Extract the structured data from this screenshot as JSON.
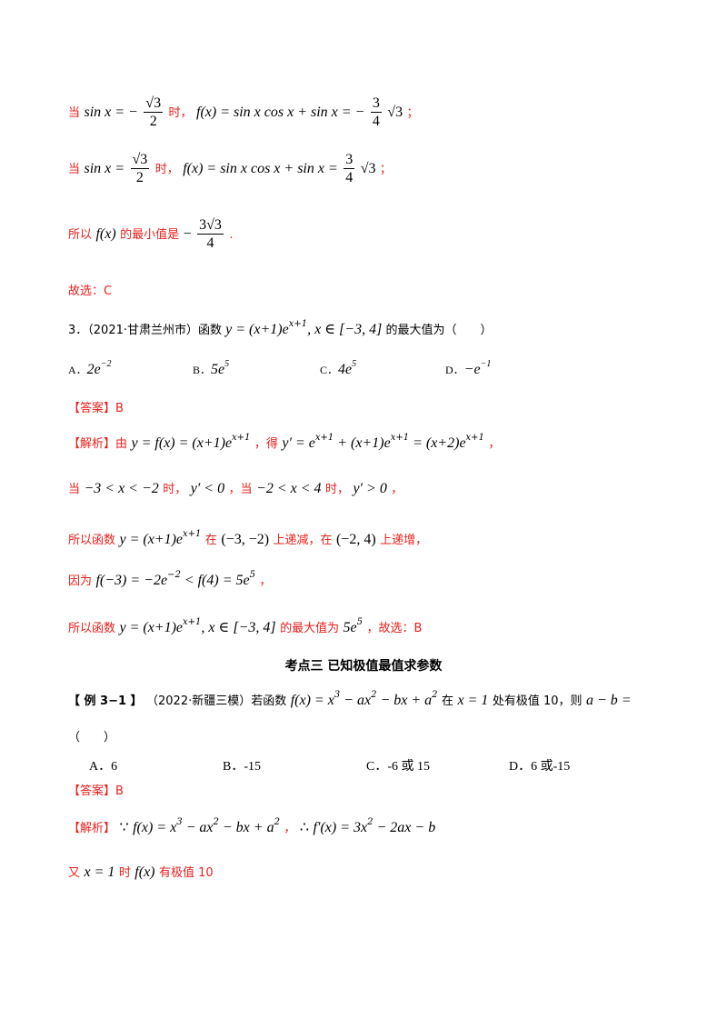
{
  "lines": {
    "l1_prefix": "当",
    "l1_cond_lhs": "sin x = −",
    "l1_cond_num": "√3",
    "l1_cond_den": "2",
    "l1_shi": "时，",
    "l1_expr": "f(x) = sin x cos x + sin x = −",
    "l1_val_num": "3",
    "l1_val_den": "4",
    "l1_val_tail": "√3",
    "l1_end": "；",
    "l2_prefix": "当",
    "l2_cond_lhs": "sin x =",
    "l2_cond_num": "√3",
    "l2_cond_den": "2",
    "l2_shi": "时，",
    "l2_expr": "f(x) = sin x cos x + sin x =",
    "l2_val_num": "3",
    "l2_val_den": "4",
    "l2_val_tail": "√3",
    "l2_end": "；",
    "l3_prefix": "所以",
    "l3_fx": "f(x)",
    "l3_mid": "的最小值是",
    "l3_neg": "−",
    "l3_num": "3√3",
    "l3_den": "4",
    "l3_end": ".",
    "l4_text": "故选：C"
  },
  "q3": {
    "label": "3．（2021·甘肃兰州市）函数",
    "func": "y = (x+1)e",
    "func_sup": "x+1",
    "domain": ", x ∈ [−3, 4]",
    "tail": "的最大值为（　　）",
    "options": [
      {
        "label": "A．",
        "base": "2e",
        "exp": "−2"
      },
      {
        "label": "B．",
        "base": "5e",
        "exp": "5"
      },
      {
        "label": "C．",
        "base": "4e",
        "exp": "5"
      },
      {
        "label": "D．",
        "base": "−e",
        "exp": "−1"
      }
    ]
  },
  "ans3": {
    "label": "【答案】B",
    "jiexi": "【解析】",
    "you": "由",
    "eq1": "y = f(x) = (x+1)e",
    "eq1_sup": "x+1",
    "de": "，得",
    "eq2a": "y′ = e",
    "eq2a_sup": "x+1",
    "eq2b": " + (x+1)e",
    "eq2b_sup": "x+1",
    "eq2c": " = (x+2)e",
    "eq2c_sup": "x+1",
    "comma": "，",
    "l_dang1": "当",
    "range1": "−3 < x < −2",
    "shi1": "时，",
    "yp1": "y′ < 0",
    "dang2": "，当",
    "range2": "−2 < x < 4",
    "shi2": "时，",
    "yp2": "y′ > 0",
    "c2": "，",
    "suoyi": "所以函数",
    "func": "y = (x+1)e",
    "func_sup": "x+1",
    "zai": "在",
    "int1": "(−3, −2)",
    "dec": "上递减，在",
    "int2": "(−2, 4)",
    "inc": "上递增，",
    "yinwei": "因为",
    "cmp": "f(−3) = −2e",
    "cmp_sup": "−2",
    "cmp2": " < f(4) = 5e",
    "cmp2_sup": "5",
    "c3": "，",
    "suoyi2": "所以函数",
    "func2": "y = (x+1)e",
    "func2_sup": "x+1",
    "domain2": ", x ∈ [−3, 4]",
    "maxis": "的最大值为",
    "maxval": "5e",
    "maxval_sup": "5",
    "final": "，故选：B"
  },
  "section": {
    "title": "考点三  已知极值最值求参数"
  },
  "ex31": {
    "label": "【 例 3−1 】",
    "source": "（2022·新疆三模）若函数",
    "func": "f(x) = x",
    "f_s1": "3",
    "f_p2": " − ax",
    "f_s2": "2",
    "f_p3": " − bx + a",
    "f_s3": "2",
    "zai": "在",
    "xeq": "x = 1",
    "mid": "处有极值 10，则",
    "ab": "a − b =",
    "paren": "（　　）",
    "options": [
      {
        "label": "A．",
        "val": "6"
      },
      {
        "label": "B．",
        "val": "-15"
      },
      {
        "label": "C．",
        "val": "-6 或 15"
      },
      {
        "label": "D．",
        "val": "6 或-15"
      }
    ]
  },
  "ans31": {
    "label": "【答案】B",
    "jiexi": "【解析】",
    "because": "∵",
    "func": "f(x) = x",
    "f_s1": "3",
    "f_p2": " − ax",
    "f_s2": "2",
    "f_p3": " − bx + a",
    "f_s3": "2",
    "comma": "，",
    "therefore": "∴",
    "deriv": "f′(x) = 3x",
    "d_s": "2",
    "deriv2": " − 2ax − b",
    "you": "又",
    "xeq": "x = 1",
    "shi": "时",
    "fx": "f(x)",
    "tail": "有极值 10"
  }
}
